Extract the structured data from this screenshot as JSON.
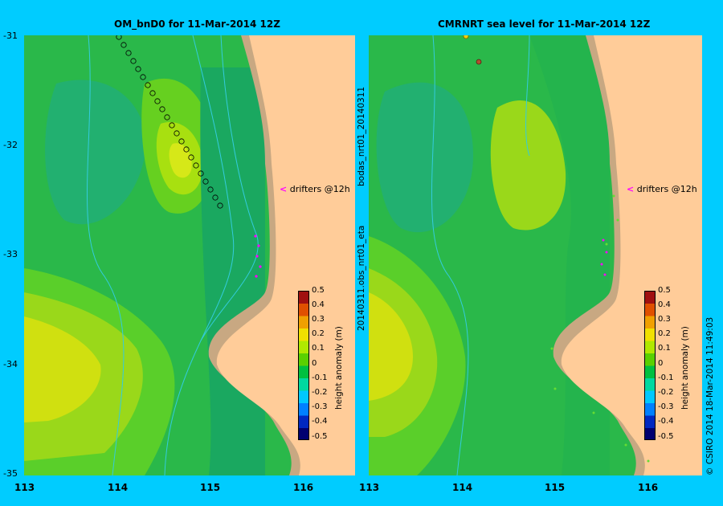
{
  "panels": [
    {
      "title": "OM_bnD0 for 11-Mar-2014 12Z"
    },
    {
      "title": "CMRNRT sea level  for 11-Mar-2014 12Z"
    }
  ],
  "y_ticks": [
    "-31",
    "-32",
    "-33",
    "-34",
    "-35"
  ],
  "x_ticks": [
    "113",
    "114",
    "115",
    "116"
  ],
  "colorbar": {
    "ticks": [
      "0.5",
      "0.4",
      "0.3",
      "0.2",
      "0.1",
      "0",
      "-0.1",
      "-0.2",
      "-0.3",
      "-0.4",
      "-0.5"
    ],
    "label": "height anomaly (m)",
    "colors": [
      "#000070",
      "#0028c0",
      "#0080ff",
      "#00c8ff",
      "#00d8a0",
      "#00c040",
      "#5ad000",
      "#b0e800",
      "#f0e000",
      "#f0a000",
      "#e05000",
      "#a01010"
    ]
  },
  "drifters_label": "drifters @12h",
  "side_labels": {
    "left_top": "bodas_nrt01_20140311",
    "left_bottom": "20140311.obs_nrt01_eta",
    "right": "© CSIRO 2014   18-Mar-2014 11:49:03"
  },
  "colors": {
    "background": "#00ccff",
    "land": "#ffcc99",
    "shelf": "#c8a882"
  }
}
